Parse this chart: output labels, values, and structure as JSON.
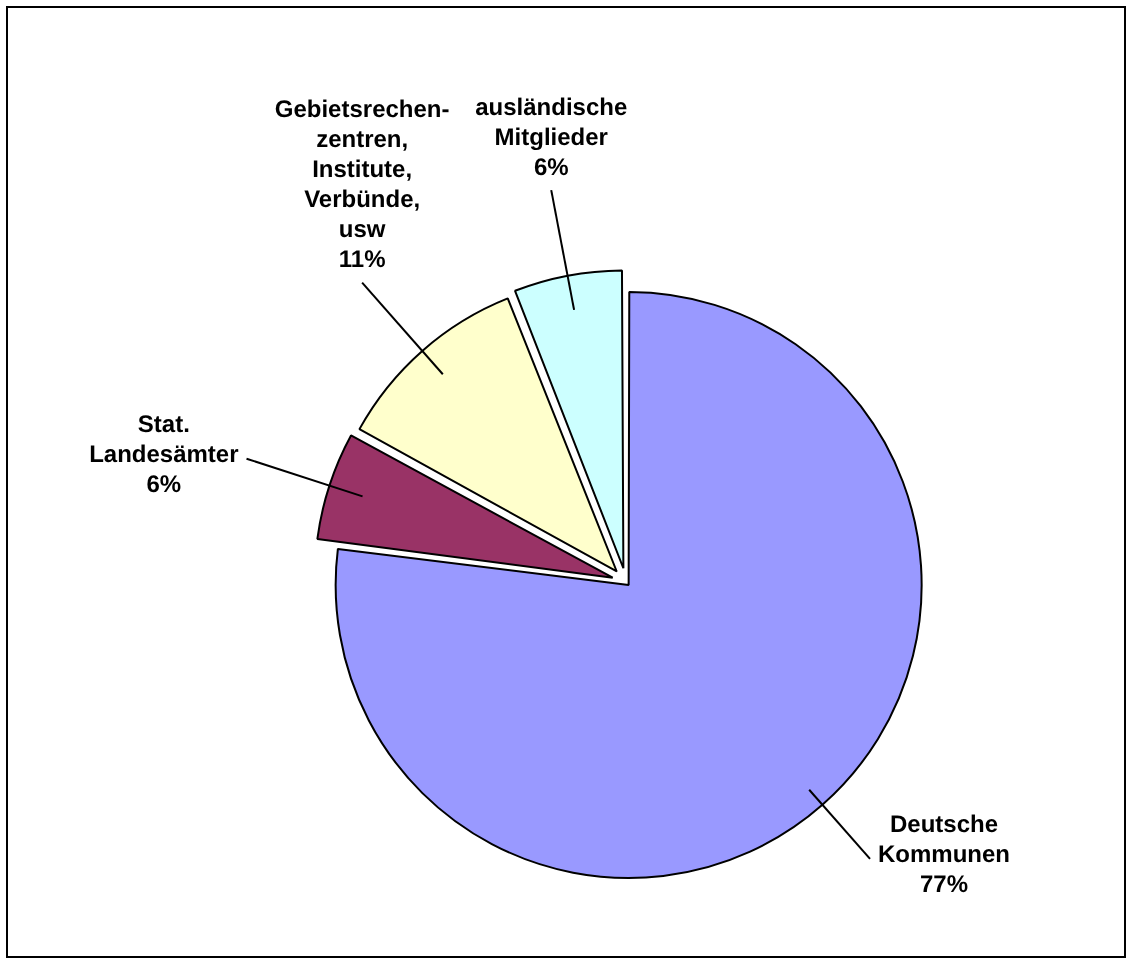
{
  "chart_data": {
    "type": "pie",
    "categories": [
      "Deutsche\nKommunen",
      "Stat.\nLandesämter",
      "Gebietsrechen-\nzentren,\nInstitute,\nVerbünde,\nusw",
      "ausländische\nMitglieder"
    ],
    "values": [
      77,
      6,
      11,
      6
    ],
    "colors": [
      "#9999ff",
      "#993366",
      "#ffffcc",
      "#ccffff"
    ],
    "value_labels": [
      "77%",
      "6%",
      "11%",
      "6%"
    ],
    "legend": false
  }
}
